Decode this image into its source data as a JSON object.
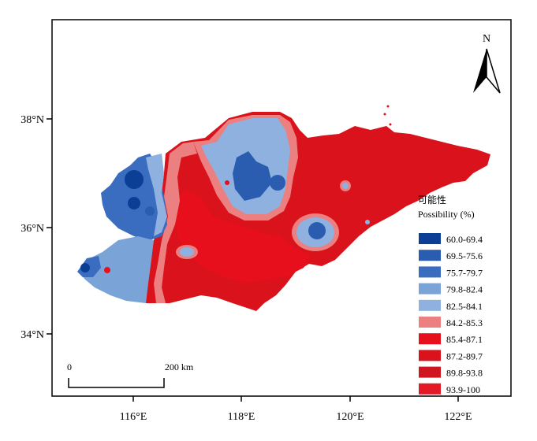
{
  "map": {
    "north_label": "N",
    "axes": {
      "y_ticks": [
        "38°N",
        "36°N",
        "34°N"
      ],
      "x_ticks": [
        "116°E",
        "118°E",
        "120°E",
        "122°E"
      ]
    },
    "scale_bar": {
      "left_label": "0",
      "right_label": "200 km"
    },
    "legend": {
      "title_cn": "可能性",
      "title_en": "Possibility (%)",
      "items": [
        {
          "label": "60.0-69.4",
          "color": "#0b3f95"
        },
        {
          "label": "69.5-75.6",
          "color": "#2a5db0"
        },
        {
          "label": "75.7-79.7",
          "color": "#3a6cc0"
        },
        {
          "label": "79.8-82.4",
          "color": "#7aa3d8"
        },
        {
          "label": "82.5-84.1",
          "color": "#8fb1e0"
        },
        {
          "label": "84.2-85.3",
          "color": "#ec8080"
        },
        {
          "label": "85.4-87.1",
          "color": "#e60f1b"
        },
        {
          "label": "87.2-89.7",
          "color": "#d9121c"
        },
        {
          "label": "89.8-93.8",
          "color": "#cf1520"
        },
        {
          "label": "93.9-100",
          "color": "#e31a25"
        }
      ]
    }
  }
}
